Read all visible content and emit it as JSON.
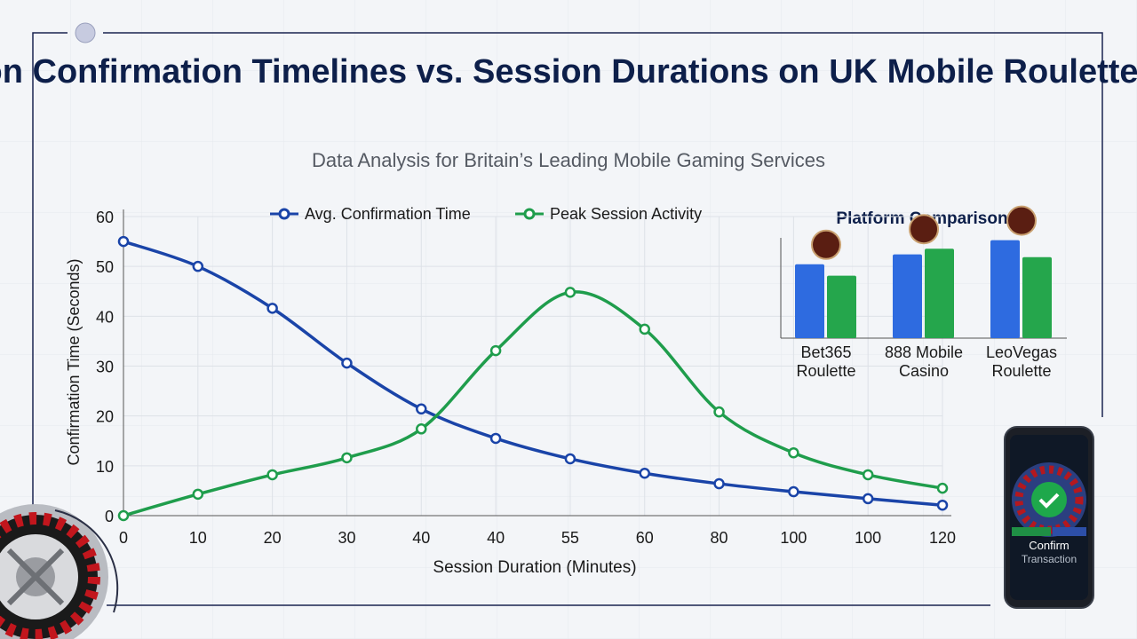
{
  "chart_data": [
    {
      "type": "line",
      "title": "Transaction Confirmation Timelines vs. Session Durations on UK Mobile Roulette Platforms",
      "subtitle": "Data Analysis for Britain’s Leading Mobile Gaming Services",
      "x_label": "Session Duration (Minutes)",
      "y_label": "Confirmation Time (Seconds)",
      "categories": [
        "0",
        "10",
        "20",
        "30",
        "40",
        "40",
        "55",
        "60",
        "80",
        "100",
        "100",
        "120"
      ],
      "series": [
        {
          "name": "Avg. Confirmation Time",
          "color": "#1a44a8",
          "values": [
            55,
            50,
            41.6,
            30.6,
            21.4,
            15.5,
            11.4,
            8.5,
            6.4,
            4.8,
            3.4,
            2.1
          ]
        },
        {
          "name": "Peak Session Activity",
          "color": "#1f9d4c",
          "values": [
            0,
            4.3,
            8.2,
            11.6,
            17.4,
            33.1,
            44.8,
            37.4,
            20.8,
            12.6,
            8.2,
            5.5
          ]
        }
      ],
      "ylim": [
        0,
        60
      ],
      "yticks": [
        0,
        10,
        20,
        30,
        40,
        50,
        60
      ],
      "grid": true,
      "legend": "top"
    },
    {
      "type": "bar",
      "title": "Platform Comparison",
      "categories": [
        "Bet365 Roulette",
        "888 Mobile Casino",
        "LeoVegas Roulette"
      ],
      "series": [
        {
          "color": "#2e6be0",
          "values": [
            52,
            59,
            69
          ]
        },
        {
          "color": "#25a64c",
          "values": [
            44,
            63,
            57
          ]
        }
      ],
      "ylim": [
        0,
        100
      ]
    }
  ],
  "phone": {
    "button": "Confirm",
    "caption": "Transaction"
  }
}
